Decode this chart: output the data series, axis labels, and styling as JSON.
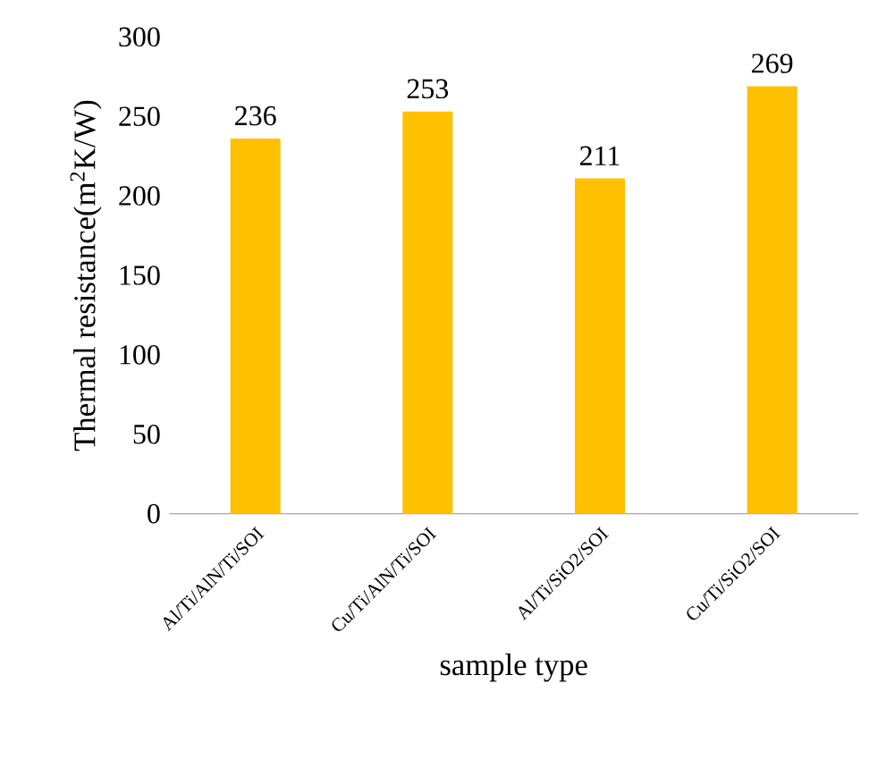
{
  "chart_data": {
    "type": "bar",
    "categories": [
      "Al/Ti/AlN/Ti/SOI",
      "Cu/Ti/AlN/Ti/SOI",
      "Al/Ti/SiO2/SOI",
      "Cu/Ti/SiO2/SOI"
    ],
    "values": [
      236,
      253,
      211,
      269
    ],
    "color": "#ffc000",
    "xlabel": "sample type",
    "ylabel": "Thermal resistance(m$^{2}$K/W)",
    "ylim": [
      0,
      300
    ],
    "yticks": [
      0,
      50,
      100,
      150,
      200,
      250,
      300
    ],
    "data_labels": true
  }
}
